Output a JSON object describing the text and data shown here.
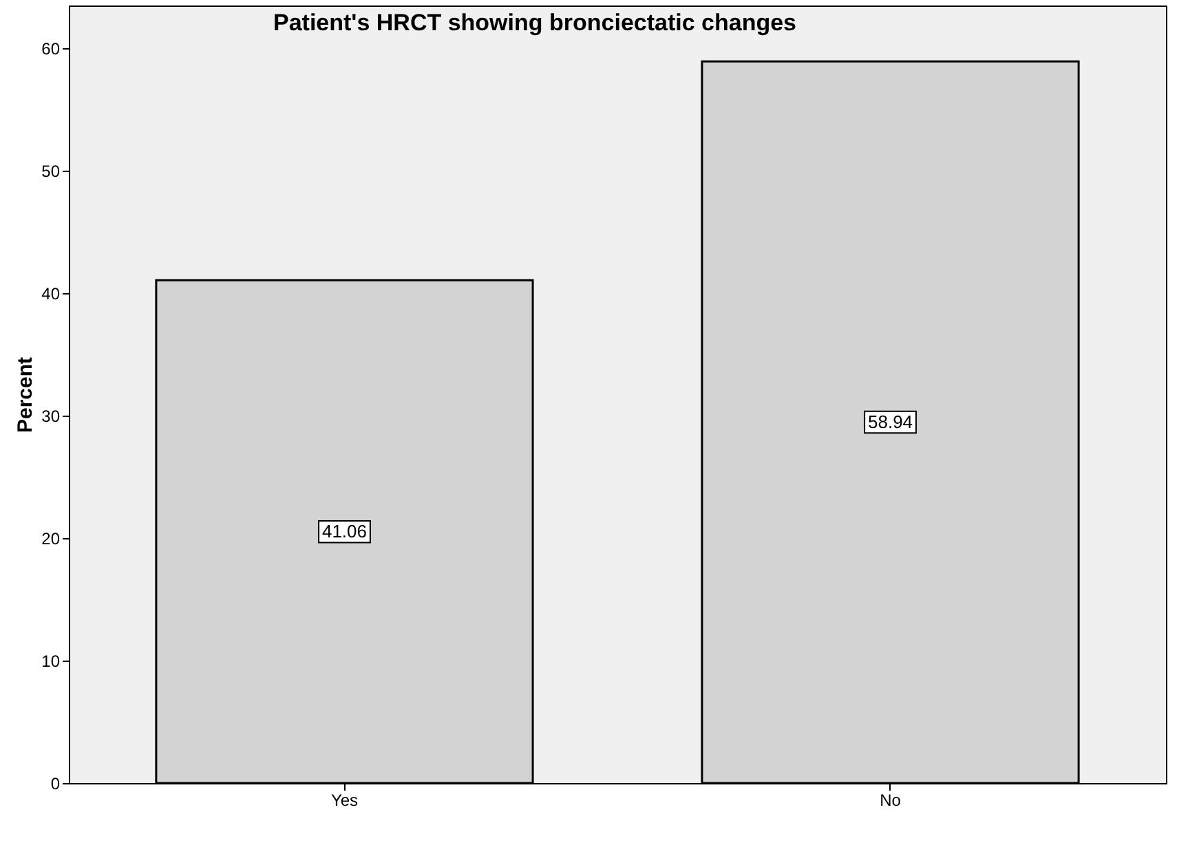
{
  "chart_data": {
    "type": "bar",
    "title": "Patient's HRCT showing bronciectatic changes",
    "ylabel": "Percent",
    "categories": [
      "Yes",
      "No"
    ],
    "values": [
      41.06,
      58.94
    ],
    "color": "#d3d3d3",
    "ylim": [
      0,
      63.5
    ],
    "yticks": [
      0,
      10,
      20,
      30,
      40,
      50,
      60
    ],
    "grid": false,
    "data_labels": true
  }
}
